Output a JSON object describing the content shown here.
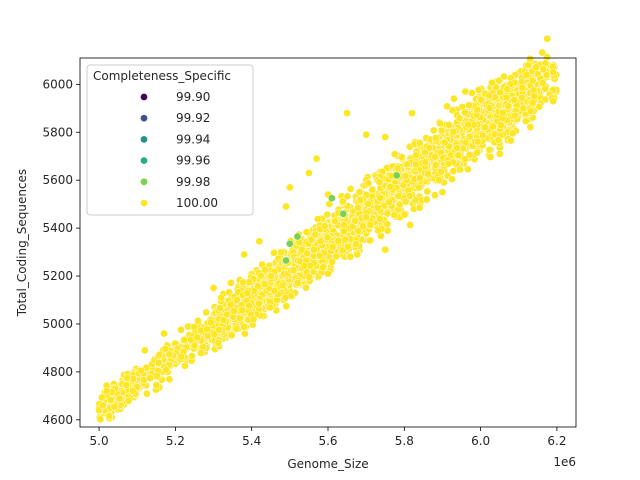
{
  "chart_data": {
    "type": "scatter",
    "xlabel": "Genome_Size",
    "ylabel": "Total_Coding_Sequences",
    "x_offset_label": "1e6",
    "xlim": [
      4.95,
      6.25
    ],
    "ylim": [
      4570,
      6110
    ],
    "x_ticks": [
      5.0,
      5.2,
      5.4,
      5.6,
      5.8,
      6.0,
      6.2
    ],
    "x_tick_labels": [
      "5.0",
      "5.2",
      "5.4",
      "5.6",
      "5.8",
      "6.0",
      "6.2"
    ],
    "y_ticks": [
      4600,
      4800,
      5000,
      5200,
      5400,
      5600,
      5800,
      6000
    ],
    "y_tick_labels": [
      "4600",
      "4800",
      "5000",
      "5200",
      "5400",
      "5600",
      "5800",
      "6000"
    ],
    "grid": false,
    "legend": {
      "title": "Completeness_Specific",
      "placement": "upper-left",
      "entries": [
        {
          "label": "99.90",
          "color": "#440154"
        },
        {
          "label": "99.92",
          "color": "#3b528b"
        },
        {
          "label": "99.94",
          "color": "#21918c"
        },
        {
          "label": "99.96",
          "color": "#27ad81"
        },
        {
          "label": "99.98",
          "color": "#7ad151"
        },
        {
          "label": "100.00",
          "color": "#fde725"
        }
      ]
    },
    "main_color": "#fde725",
    "main_band": {
      "x_range": [
        5.0,
        6.2
      ],
      "trend_y": [
        [
          5.0,
          4650
        ],
        [
          5.2,
          4870
        ],
        [
          5.4,
          5100
        ],
        [
          5.6,
          5340
        ],
        [
          5.8,
          5590
        ],
        [
          6.0,
          5840
        ],
        [
          6.2,
          6040
        ]
      ],
      "spread": 150,
      "count": 2600
    },
    "series": [
      {
        "name": "100.00",
        "values": [
          [
            5.0,
            4640
          ],
          [
            5.01,
            4660
          ],
          [
            5.02,
            4720
          ],
          [
            5.03,
            4650
          ],
          [
            5.04,
            4655
          ],
          [
            5.12,
            4890
          ],
          [
            5.17,
            4960
          ],
          [
            5.3,
            5150
          ],
          [
            5.38,
            5290
          ],
          [
            5.42,
            5345
          ],
          [
            5.49,
            5490
          ],
          [
            5.5,
            5570
          ],
          [
            5.55,
            5630
          ],
          [
            5.57,
            5690
          ],
          [
            5.6,
            5540
          ],
          [
            5.65,
            5880
          ],
          [
            5.7,
            5790
          ],
          [
            5.75,
            5780
          ],
          [
            5.82,
            5880
          ],
          [
            5.93,
            5940
          ],
          [
            5.96,
            5970
          ],
          [
            6.07,
            5980
          ],
          [
            6.09,
            5870
          ],
          [
            6.12,
            6040
          ],
          [
            6.14,
            5950
          ],
          [
            6.19,
            5930
          ],
          [
            6.19,
            6050
          ],
          [
            5.75,
            5310
          ],
          [
            5.6,
            5210
          ],
          [
            5.84,
            5485
          ],
          [
            5.9,
            5550
          ],
          [
            6.05,
            5710
          ],
          [
            5.25,
            4910
          ],
          [
            5.15,
            4745
          ]
        ]
      },
      {
        "name": "99.98",
        "values": [
          [
            5.49,
            5265
          ],
          [
            5.52,
            5365
          ],
          [
            5.61,
            5525
          ],
          [
            5.64,
            5460
          ],
          [
            5.78,
            5620
          ],
          [
            5.5,
            5335
          ]
        ]
      }
    ]
  }
}
